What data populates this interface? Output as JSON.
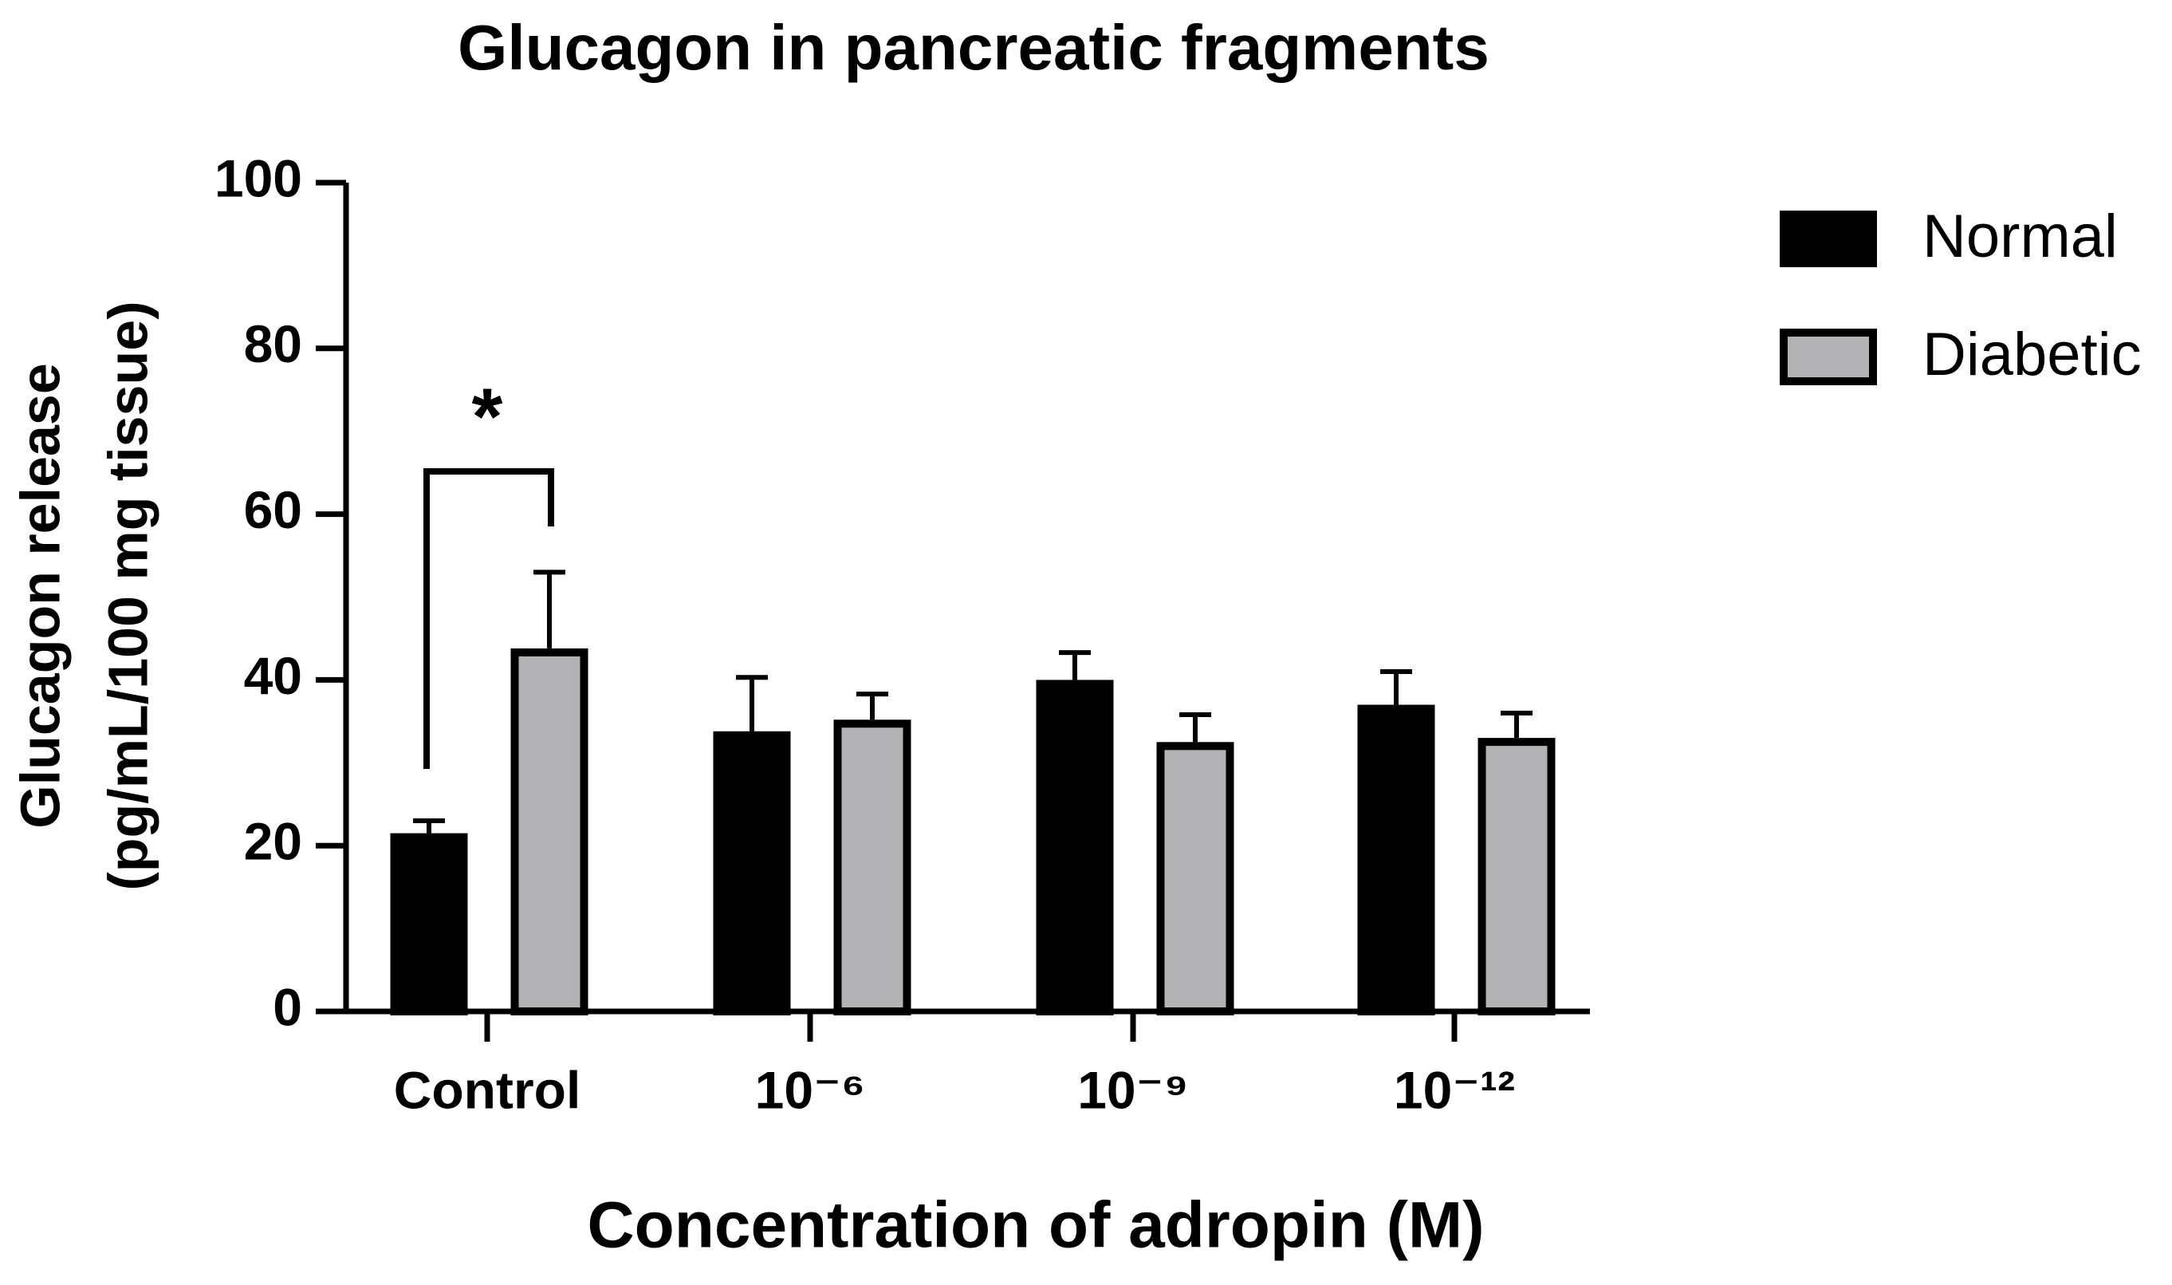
{
  "chart_data": {
    "type": "bar",
    "title": "Glucagon in pancreatic fragments",
    "xlabel": "Concentration  of adropin (M)",
    "ylabel": [
      "Glucagon release",
      "(pg/mL/100 mg tissue)"
    ],
    "categories": [
      "Control",
      "10⁻⁶",
      "10⁻⁹",
      "10⁻¹²"
    ],
    "series": [
      {
        "name": "Normal",
        "color": "#000000",
        "values": [
          21.5,
          33.8,
          40,
          37
        ],
        "errors": [
          1.5,
          6.5,
          3.3,
          4
        ]
      },
      {
        "name": "Diabetic",
        "color": "#b3b3b5",
        "values": [
          43.8,
          35.2,
          32.5,
          33
        ],
        "errors": [
          9.2,
          3.1,
          3.3,
          3
        ]
      }
    ],
    "significance_label": "*",
    "ylim": [
      0,
      100
    ],
    "yticks": [
      0,
      20,
      40,
      60,
      80,
      100
    ],
    "grid": false,
    "legend": "right"
  }
}
